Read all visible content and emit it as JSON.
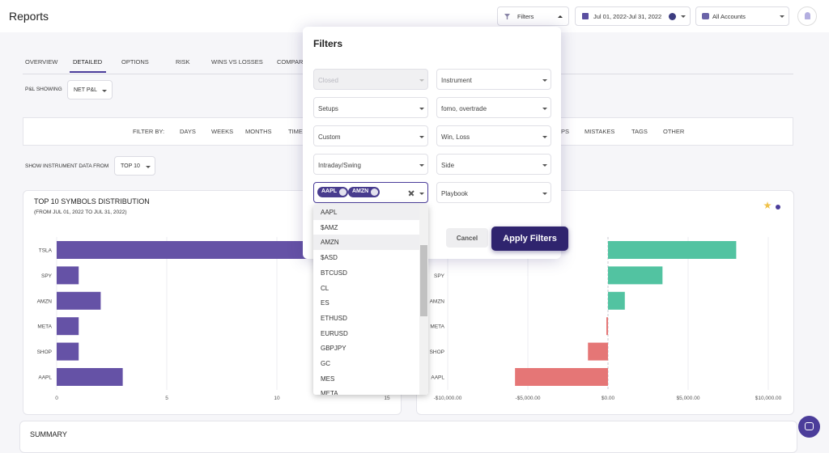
{
  "header": {
    "title": "Reports",
    "filters_button": "Filters",
    "date_range": "Jul 01, 2022-Jul 31, 2022",
    "accounts": "All Accounts"
  },
  "tabs": [
    "OVERVIEW",
    "DETAILED",
    "OPTIONS",
    "RISK",
    "WINS VS LOSSES",
    "COMPARE"
  ],
  "pnl": {
    "label": "P&L SHOWING",
    "value": "NET P&L"
  },
  "filter_bar": {
    "label": "FILTER BY:",
    "items": [
      "DAYS",
      "WEEKS",
      "MONTHS",
      "TIME",
      "SETUPS",
      "MISTAKES",
      "TAGS",
      "OTHER"
    ]
  },
  "instrument_data": {
    "label": "SHOW INSTRUMENT DATA FROM",
    "value": "TOP 10"
  },
  "chart_data": [
    {
      "type": "bar",
      "orientation": "horizontal",
      "title": "TOP 10 SYMBOLS DISTRIBUTION",
      "subtitle": "(FROM JUL 01, 2022 TO JUL 31, 2022)",
      "categories": [
        "TSLA",
        "SPY",
        "AMZN",
        "META",
        "SHOP",
        "AAPL"
      ],
      "values": [
        12,
        1,
        2,
        1,
        1,
        3
      ],
      "color": "#6552a6",
      "xlim": [
        0,
        15
      ],
      "xticks": [
        0,
        5,
        10,
        15
      ],
      "grid": true
    },
    {
      "type": "bar",
      "orientation": "horizontal",
      "categories": [
        null,
        "SPY",
        "AMZN",
        "META",
        "SHOP",
        "AAPL"
      ],
      "values": [
        8000,
        3400,
        1050,
        -100,
        -1250,
        -5800
      ],
      "positive_color": "#52c3a1",
      "negative_color": "#e57676",
      "xlim": [
        -11000,
        11000
      ],
      "xticks": [
        {
          "value": -10000,
          "label": "-$10,000.00"
        },
        {
          "value": -5000,
          "label": "-$5,000.00"
        },
        {
          "value": 0,
          "label": "$0.00"
        },
        {
          "value": 5000,
          "label": "$5,000.00"
        },
        {
          "value": 10000,
          "label": "$10,000.00"
        }
      ],
      "grid": true
    }
  ],
  "summary": {
    "title": "SUMMARY"
  },
  "filters_modal": {
    "title": "Filters",
    "left_fields": [
      "Closed",
      "Setups",
      "Custom",
      "Intraday/Swing"
    ],
    "right_fields": [
      "Instrument",
      "fomo, overtrade",
      "Win, Loss",
      "Side",
      "Playbook"
    ],
    "chips": [
      "AAPL",
      "AMZN"
    ],
    "cancel": "Cancel",
    "apply": "Apply Filters"
  },
  "instrument_dropdown": {
    "options": [
      "AAPL",
      "$AMZ",
      "AMZN",
      "$ASD",
      "BTCUSD",
      "CL",
      "ES",
      "ETHUSD",
      "EURUSD",
      "GBPJPY",
      "GC",
      "MES",
      "META"
    ]
  }
}
